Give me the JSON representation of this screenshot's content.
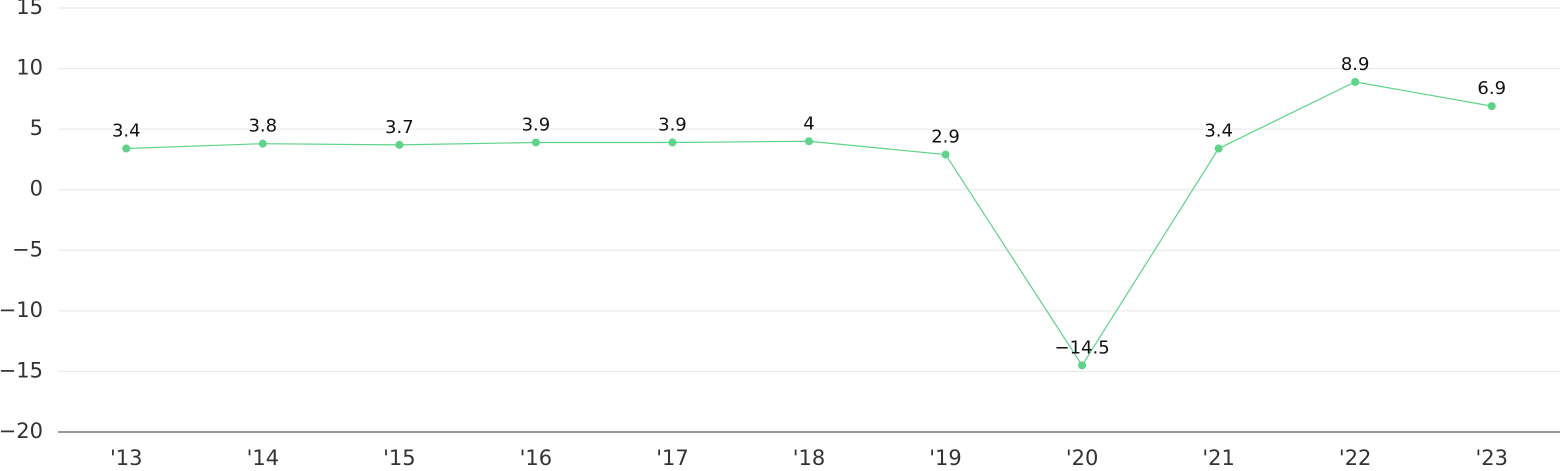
{
  "chart_data": {
    "type": "line",
    "categories": [
      "'13",
      "'14",
      "'15",
      "'16",
      "'17",
      "'18",
      "'19",
      "'20",
      "'21",
      "'22",
      "'23"
    ],
    "series": [
      {
        "color": "#5ed38a",
        "values": [
          3.4,
          3.8,
          3.7,
          3.9,
          3.9,
          4,
          2.9,
          -14.5,
          3.4,
          8.9,
          6.9
        ],
        "value_labels": [
          "3.4",
          "3.8",
          "3.7",
          "3.9",
          "3.9",
          "4",
          "2.9",
          "−14.5",
          "3.4",
          "8.9",
          "6.9"
        ]
      }
    ],
    "ylim": [
      -20,
      15
    ],
    "yticks": [
      {
        "value": -20,
        "label": "−20"
      },
      {
        "value": -15,
        "label": "−15"
      },
      {
        "value": -10,
        "label": "−10"
      },
      {
        "value": -5,
        "label": "−5"
      },
      0,
      5,
      10,
      15
    ],
    "grid": true
  }
}
